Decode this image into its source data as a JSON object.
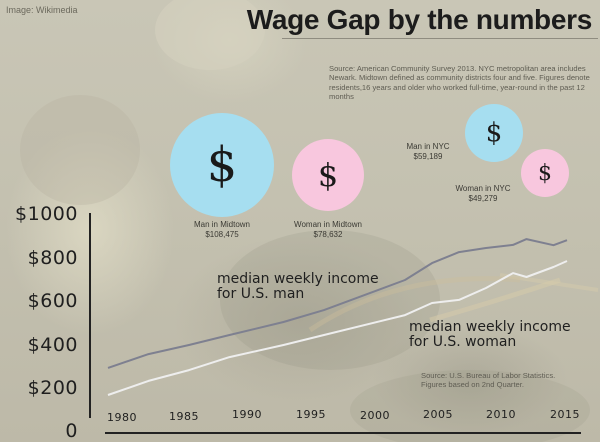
{
  "credit": "Image: Wikimedia",
  "title": "Wage Gap by the numbers",
  "source_top": "Source: American Community Survey 2013. NYC metropolitan area includes Newark. Midtown defined as community districts four and five. Figures denote residents,16 years and older who worked full-time, year-round in the past 12 months",
  "bubbles": [
    {
      "label": "Man in Midtown",
      "value": "$108,475",
      "symbol": "$",
      "color": "#a6def0"
    },
    {
      "label": "Woman in Midtown",
      "value": "$78,632",
      "symbol": "$",
      "color": "#f8c7de"
    },
    {
      "label": "Man in NYC",
      "value": "$59,189",
      "symbol": "$",
      "color": "#a6def0"
    },
    {
      "label": "Woman in NYC",
      "value": "$49,279",
      "symbol": "$",
      "color": "#f8c7de"
    }
  ],
  "series_labels": {
    "man": [
      "median weekly income",
      "for U.S. man"
    ],
    "woman": [
      "median weekly income",
      "for U.S. woman"
    ]
  },
  "source_bottom": [
    "Source: U.S. Bureau of Labor Statistics.",
    "Figures based on 2nd Quarter."
  ],
  "chart_data": [
    {
      "type": "bubble",
      "title": "Annual earnings (American Community Survey 2013)",
      "categories": [
        "Man in Midtown",
        "Woman in Midtown",
        "Man in NYC",
        "Woman in NYC"
      ],
      "values": [
        108475,
        78632,
        59189,
        49279
      ],
      "colors": [
        "#a6def0",
        "#f8c7de",
        "#a6def0",
        "#f8c7de"
      ]
    },
    {
      "type": "line",
      "title": "Wage Gap by the numbers",
      "xlabel": "",
      "ylabel": "",
      "x_ticks": [
        "1980",
        "1985",
        "1990",
        "1995",
        "2000",
        "2005",
        "2010",
        "2015"
      ],
      "y_ticks": [
        "0",
        "$200",
        "$400",
        "$600",
        "$800",
        "$1000"
      ],
      "ylim": [
        0,
        1000
      ],
      "xlim": [
        1980,
        2015
      ],
      "grid": false,
      "x": [
        1980,
        1983,
        1986,
        1989,
        1993,
        1996,
        2002,
        2004,
        2006,
        2008,
        2010,
        2011,
        2013,
        2014
      ],
      "series": [
        {
          "name": "median weekly income for U.S. man",
          "color": "#7e8090",
          "values": [
            296,
            360,
            402,
            448,
            508,
            563,
            702,
            780,
            831,
            850,
            864,
            891,
            863,
            886
          ]
        },
        {
          "name": "median weekly income for U.S. woman",
          "color": "#eeeeee",
          "values": [
            171,
            236,
            286,
            346,
            402,
            448,
            540,
            596,
            610,
            665,
            734,
            716,
            762,
            790
          ]
        }
      ]
    }
  ],
  "axis": {
    "y_labels": [
      "$1000",
      "$800",
      "$600",
      "$400",
      "$200",
      "0"
    ],
    "x_labels": [
      "1980",
      "1985",
      "1990",
      "1995",
      "2000",
      "2005",
      "2010",
      "2015"
    ]
  }
}
